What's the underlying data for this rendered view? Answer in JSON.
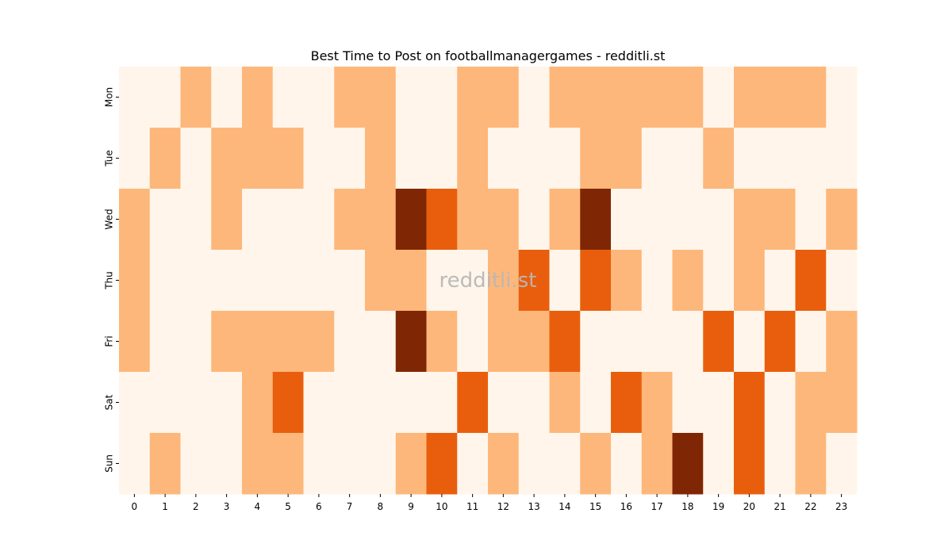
{
  "chart_data": {
    "type": "heatmap",
    "title": "Best Time to Post on footballmanagergames - redditli.st",
    "xlabel": "",
    "ylabel": "",
    "x": [
      "0",
      "1",
      "2",
      "3",
      "4",
      "5",
      "6",
      "7",
      "8",
      "9",
      "10",
      "11",
      "12",
      "13",
      "14",
      "15",
      "16",
      "17",
      "18",
      "19",
      "20",
      "21",
      "22",
      "23"
    ],
    "y": [
      "Mon",
      "Tue",
      "Wed",
      "Thu",
      "Fri",
      "Sat",
      "Sun"
    ],
    "colorbar": false,
    "watermark": "redditli.st",
    "values": [
      [
        0,
        0,
        1,
        0,
        1,
        0,
        0,
        1,
        1,
        0,
        0,
        1,
        1,
        0,
        1,
        1,
        1,
        1,
        1,
        0,
        1,
        1,
        1,
        0
      ],
      [
        0,
        1,
        0,
        1,
        1,
        1,
        0,
        0,
        1,
        0,
        0,
        1,
        0,
        0,
        0,
        1,
        1,
        0,
        0,
        1,
        0,
        0,
        0,
        0
      ],
      [
        1,
        0,
        0,
        1,
        0,
        0,
        0,
        1,
        1,
        3,
        2,
        1,
        1,
        0,
        1,
        3,
        0,
        0,
        0,
        0,
        1,
        1,
        0,
        1
      ],
      [
        1,
        0,
        0,
        0,
        0,
        0,
        0,
        0,
        1,
        1,
        0,
        0,
        1,
        2,
        0,
        2,
        1,
        0,
        1,
        0,
        1,
        0,
        2,
        0
      ],
      [
        1,
        0,
        0,
        1,
        1,
        1,
        1,
        0,
        0,
        3,
        1,
        0,
        1,
        1,
        2,
        0,
        0,
        0,
        0,
        2,
        0,
        2,
        0,
        1
      ],
      [
        0,
        0,
        0,
        0,
        1,
        2,
        0,
        0,
        0,
        0,
        0,
        2,
        0,
        0,
        1,
        0,
        2,
        1,
        0,
        0,
        2,
        0,
        1,
        1
      ],
      [
        0,
        1,
        0,
        0,
        1,
        1,
        0,
        0,
        0,
        1,
        2,
        0,
        1,
        0,
        0,
        1,
        0,
        1,
        3,
        0,
        2,
        0,
        1,
        0
      ]
    ],
    "colors": [
      "#fff5eb",
      "#fdb77a",
      "#e95e0d",
      "#7f2704"
    ]
  }
}
